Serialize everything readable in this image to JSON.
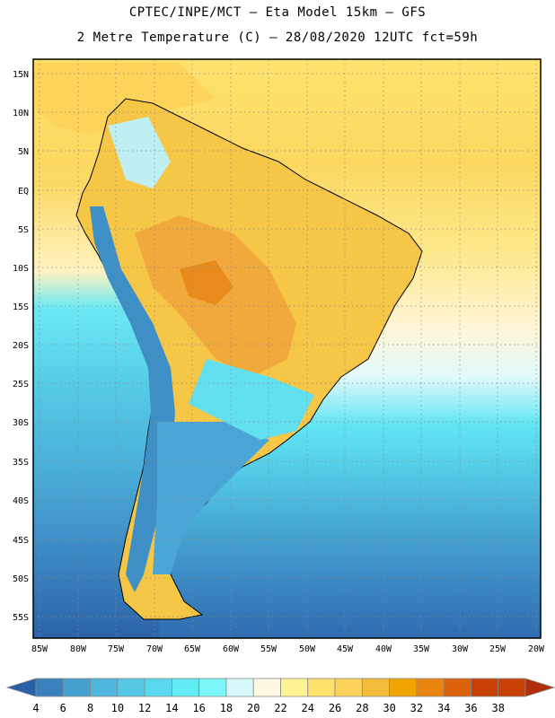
{
  "title_line1": "CPTEC/INPE/MCT –  Eta Model 15km – GFS",
  "title_line2": "2 Metre Temperature (C) – 28/08/2020 12UTC fct=59h",
  "lat_labels": [
    "15N",
    "10N",
    "5N",
    "EQ",
    "5S",
    "10S",
    "15S",
    "20S",
    "25S",
    "30S",
    "35S",
    "40S",
    "45S",
    "50S",
    "55S"
  ],
  "lon_labels": [
    "85W",
    "80W",
    "75W",
    "70W",
    "65W",
    "60W",
    "55W",
    "50W",
    "45W",
    "40W",
    "35W",
    "30W",
    "25W",
    "20W"
  ],
  "colorbar": {
    "ticks": [
      "4",
      "6",
      "8",
      "10",
      "12",
      "14",
      "16",
      "18",
      "20",
      "22",
      "24",
      "26",
      "28",
      "30",
      "32",
      "34",
      "36",
      "38"
    ],
    "colors": [
      "#2a61a6",
      "#3a80bd",
      "#46a0cf",
      "#4fb6dd",
      "#55c8e6",
      "#5ad9ee",
      "#62ebf5",
      "#7cf7f9",
      "#d8f9fb",
      "#fff8e2",
      "#fff394",
      "#ffe26a",
      "#fcd35a",
      "#f3bc3a",
      "#f0a400",
      "#e9840f",
      "#db6208",
      "#c84003",
      "#b02e0a"
    ]
  }
}
